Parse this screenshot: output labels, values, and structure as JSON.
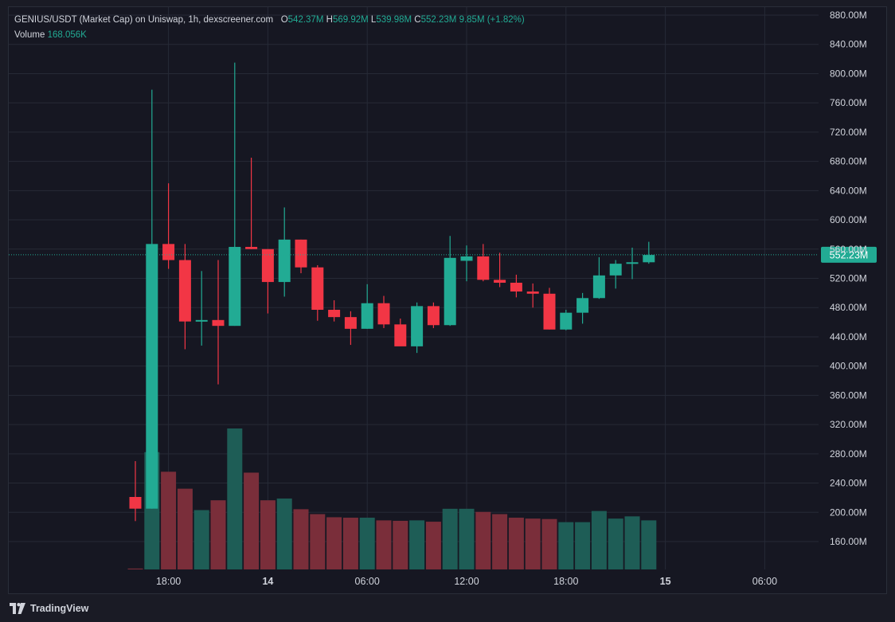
{
  "legend": {
    "title": "GENIUS/USDT (Market Cap) on Uniswap, 1h, dexscreener.com",
    "o_label": "O",
    "o_value": "542.37M",
    "h_label": "H",
    "h_value": "569.92M",
    "l_label": "L",
    "l_value": "539.98M",
    "c_label": "C",
    "c_value": "552.23M",
    "change": "9.85M (+1.82%)",
    "volume_label": "Volume",
    "volume_value": "168.056K"
  },
  "footer": {
    "brand": "TradingView",
    "logo_icon": "tradingview-logo-icon"
  },
  "colors": {
    "up": "#22ab94",
    "down": "#f23645",
    "vol_up": "#1e5d56",
    "vol_down": "#7a2e3a",
    "grid": "#262a36",
    "price_line": "#22ab94"
  },
  "chart_data": {
    "type": "candlestick",
    "interval": "1h",
    "y_unit": "market cap (USD, millions)",
    "ylim": [
      100,
      890
    ],
    "y_ticks": [
      "880.00M",
      "840.00M",
      "800.00M",
      "760.00M",
      "720.00M",
      "680.00M",
      "640.00M",
      "600.00M",
      "560.00M",
      "520.00M",
      "480.00M",
      "440.00M",
      "400.00M",
      "360.00M",
      "320.00M",
      "280.00M",
      "240.00M",
      "200.00M",
      "160.00M"
    ],
    "x_ticks": [
      {
        "label": "18:00",
        "bar": 2
      },
      {
        "label": "14",
        "bar": 8
      },
      {
        "label": "06:00",
        "bar": 14
      },
      {
        "label": "12:00",
        "bar": 20
      },
      {
        "label": "18:00",
        "bar": 26
      },
      {
        "label": "15",
        "bar": 32
      },
      {
        "label": "06:00",
        "bar": 38
      }
    ],
    "last_price": 552.23,
    "last_price_label": "552.23M",
    "candles": [
      {
        "o": 221,
        "h": 270,
        "l": 188,
        "c": 205
      },
      {
        "o": 205,
        "h": 778,
        "l": 205,
        "c": 567
      },
      {
        "o": 567,
        "h": 650,
        "l": 533,
        "c": 545
      },
      {
        "o": 545,
        "h": 567,
        "l": 423,
        "c": 461
      },
      {
        "o": 461,
        "h": 530,
        "l": 428,
        "c": 463
      },
      {
        "o": 463,
        "h": 545,
        "l": 375,
        "c": 455
      },
      {
        "o": 455,
        "h": 815,
        "l": 455,
        "c": 563
      },
      {
        "o": 563,
        "h": 685,
        "l": 560,
        "c": 560
      },
      {
        "o": 560,
        "h": 560,
        "l": 472,
        "c": 515
      },
      {
        "o": 515,
        "h": 617,
        "l": 495,
        "c": 573
      },
      {
        "o": 573,
        "h": 573,
        "l": 527,
        "c": 535
      },
      {
        "o": 535,
        "h": 538,
        "l": 462,
        "c": 477
      },
      {
        "o": 477,
        "h": 490,
        "l": 461,
        "c": 467
      },
      {
        "o": 467,
        "h": 475,
        "l": 429,
        "c": 451
      },
      {
        "o": 451,
        "h": 512,
        "l": 451,
        "c": 486
      },
      {
        "o": 486,
        "h": 496,
        "l": 452,
        "c": 457
      },
      {
        "o": 457,
        "h": 465,
        "l": 430,
        "c": 427
      },
      {
        "o": 427,
        "h": 487,
        "l": 418,
        "c": 482
      },
      {
        "o": 482,
        "h": 487,
        "l": 452,
        "c": 456
      },
      {
        "o": 456,
        "h": 578,
        "l": 455,
        "c": 548
      },
      {
        "o": 544,
        "h": 565,
        "l": 516,
        "c": 550
      },
      {
        "o": 550,
        "h": 567,
        "l": 516,
        "c": 518
      },
      {
        "o": 518,
        "h": 555,
        "l": 508,
        "c": 514
      },
      {
        "o": 514,
        "h": 525,
        "l": 494,
        "c": 502
      },
      {
        "o": 502,
        "h": 513,
        "l": 480,
        "c": 499
      },
      {
        "o": 499,
        "h": 507,
        "l": 450,
        "c": 450
      },
      {
        "o": 450,
        "h": 477,
        "l": 449,
        "c": 473
      },
      {
        "o": 473,
        "h": 500,
        "l": 458,
        "c": 493
      },
      {
        "o": 493,
        "h": 549,
        "l": 492,
        "c": 524
      },
      {
        "o": 524,
        "h": 545,
        "l": 506,
        "c": 540
      },
      {
        "o": 540,
        "h": 562,
        "l": 519,
        "c": 542
      },
      {
        "o": 542,
        "h": 570,
        "l": 540,
        "c": 552
      }
    ],
    "volume": {
      "max_ref": 316,
      "bars": [
        {
          "v": 2,
          "dir": "down"
        },
        {
          "v": 263,
          "dir": "up"
        },
        {
          "v": 219,
          "dir": "down"
        },
        {
          "v": 181,
          "dir": "down"
        },
        {
          "v": 133,
          "dir": "up"
        },
        {
          "v": 155,
          "dir": "down"
        },
        {
          "v": 316,
          "dir": "up"
        },
        {
          "v": 217,
          "dir": "down"
        },
        {
          "v": 155,
          "dir": "down"
        },
        {
          "v": 159,
          "dir": "up"
        },
        {
          "v": 135,
          "dir": "down"
        },
        {
          "v": 124,
          "dir": "down"
        },
        {
          "v": 117,
          "dir": "down"
        },
        {
          "v": 116,
          "dir": "down"
        },
        {
          "v": 116,
          "dir": "up"
        },
        {
          "v": 110,
          "dir": "down"
        },
        {
          "v": 109,
          "dir": "down"
        },
        {
          "v": 110,
          "dir": "up"
        },
        {
          "v": 107,
          "dir": "down"
        },
        {
          "v": 136,
          "dir": "up"
        },
        {
          "v": 136,
          "dir": "up"
        },
        {
          "v": 129,
          "dir": "down"
        },
        {
          "v": 124,
          "dir": "down"
        },
        {
          "v": 116,
          "dir": "down"
        },
        {
          "v": 114,
          "dir": "down"
        },
        {
          "v": 113,
          "dir": "down"
        },
        {
          "v": 106,
          "dir": "up"
        },
        {
          "v": 106,
          "dir": "up"
        },
        {
          "v": 131,
          "dir": "up"
        },
        {
          "v": 114,
          "dir": "up"
        },
        {
          "v": 119,
          "dir": "up"
        },
        {
          "v": 110,
          "dir": "up"
        }
      ]
    }
  }
}
